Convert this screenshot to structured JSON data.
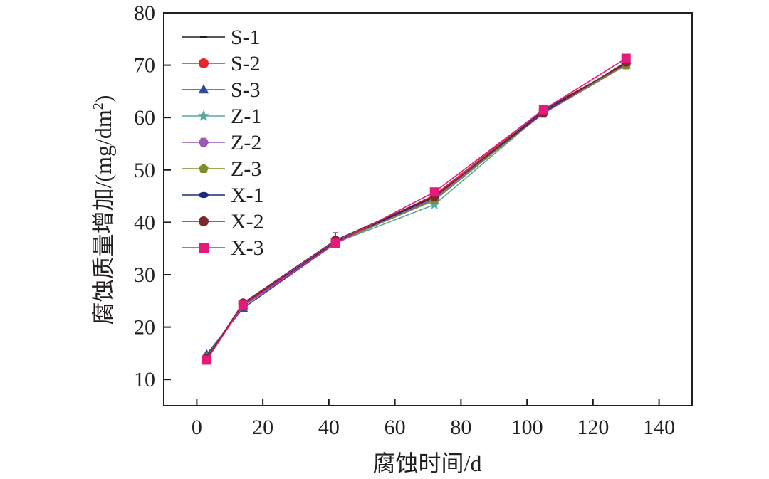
{
  "chart_data": {
    "type": "line",
    "xlabel": "腐蚀时间/d",
    "ylabel_main": "腐蚀质量增加/(mg/dm",
    "ylabel_sup": "2",
    "ylabel_tail": ")",
    "xlim": [
      -10,
      150
    ],
    "ylim": [
      5,
      80
    ],
    "xticks": [
      0,
      20,
      40,
      60,
      80,
      100,
      120,
      140
    ],
    "yticks": [
      10,
      20,
      30,
      40,
      50,
      60,
      70,
      80
    ],
    "grid": false,
    "legend_position": "top-left",
    "series": [
      {
        "name": "S-1",
        "color": "#231f20",
        "marker": "dash",
        "x": [
          3,
          14,
          42,
          72,
          105,
          130
        ],
        "y": [
          14.5,
          24.0,
          36.0,
          44.8,
          61.0,
          70.0
        ]
      },
      {
        "name": "S-2",
        "color": "#e8262b",
        "marker": "circle",
        "x": [
          3,
          14,
          42,
          72,
          105,
          130
        ],
        "y": [
          14.2,
          24.4,
          36.2,
          45.2,
          61.6,
          70.2
        ]
      },
      {
        "name": "S-3",
        "color": "#2f4aa0",
        "marker": "triangle",
        "x": [
          3,
          14,
          42,
          72,
          105,
          130
        ],
        "y": [
          14.8,
          23.6,
          36.0,
          44.5,
          61.2,
          70.0
        ]
      },
      {
        "name": "Z-1",
        "color": "#5aa9a0",
        "marker": "star",
        "x": [
          3,
          14,
          42,
          72,
          105,
          130
        ],
        "y": [
          14.3,
          24.2,
          36.1,
          43.4,
          61.0,
          70.0
        ]
      },
      {
        "name": "Z-2",
        "color": "#9b59b6",
        "marker": "hexagon",
        "x": [
          3,
          14,
          42,
          72,
          105,
          130
        ],
        "y": [
          14.0,
          24.0,
          36.0,
          44.6,
          60.8,
          70.0
        ]
      },
      {
        "name": "Z-3",
        "color": "#7f8c2a",
        "marker": "pentagon",
        "x": [
          3,
          14,
          42,
          72,
          105,
          130
        ],
        "y": [
          14.2,
          24.1,
          36.2,
          44.2,
          61.0,
          70.0
        ]
      },
      {
        "name": "X-1",
        "color": "#1f2b7a",
        "marker": "ellipse",
        "x": [
          3,
          14,
          42,
          72,
          105,
          130
        ],
        "y": [
          14.1,
          24.3,
          36.3,
          44.9,
          61.3,
          70.4
        ]
      },
      {
        "name": "X-2",
        "color": "#7a2a2a",
        "marker": "circle",
        "x": [
          3,
          14,
          42,
          72,
          105,
          130
        ],
        "y": [
          14.0,
          24.6,
          36.6,
          45.0,
          60.9,
          70.6
        ],
        "err": [
          0.5,
          0.6,
          1.4,
          0.8,
          0.8,
          0.6
        ]
      },
      {
        "name": "X-3",
        "color": "#e6197d",
        "marker": "square",
        "x": [
          3,
          14,
          42,
          72,
          105,
          130
        ],
        "y": [
          13.7,
          24.2,
          36.0,
          45.8,
          61.5,
          71.3
        ]
      }
    ]
  }
}
